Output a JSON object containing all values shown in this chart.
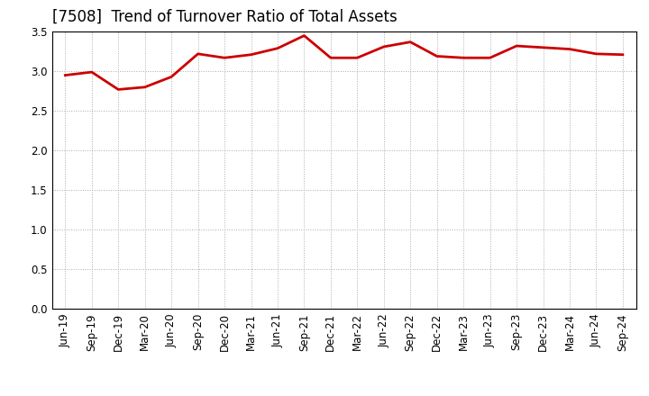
{
  "title": "[7508]  Trend of Turnover Ratio of Total Assets",
  "x_labels": [
    "Jun-19",
    "Sep-19",
    "Dec-19",
    "Mar-20",
    "Jun-20",
    "Sep-20",
    "Dec-20",
    "Mar-21",
    "Jun-21",
    "Sep-21",
    "Dec-21",
    "Mar-22",
    "Jun-22",
    "Sep-22",
    "Dec-22",
    "Mar-23",
    "Jun-23",
    "Sep-23",
    "Dec-23",
    "Mar-24",
    "Jun-24",
    "Sep-24"
  ],
  "values": [
    2.95,
    2.99,
    2.77,
    2.8,
    2.93,
    3.22,
    3.17,
    3.21,
    3.29,
    3.45,
    3.17,
    3.17,
    3.31,
    3.37,
    3.19,
    3.17,
    3.17,
    3.32,
    3.3,
    3.28,
    3.22,
    3.21
  ],
  "line_color": "#cc0000",
  "line_width": 2.0,
  "ylim": [
    0.0,
    3.5
  ],
  "yticks": [
    0.0,
    0.5,
    1.0,
    1.5,
    2.0,
    2.5,
    3.0,
    3.5
  ],
  "background_color": "#ffffff",
  "grid_color": "#aaaaaa",
  "title_fontsize": 12,
  "tick_fontsize": 8.5
}
